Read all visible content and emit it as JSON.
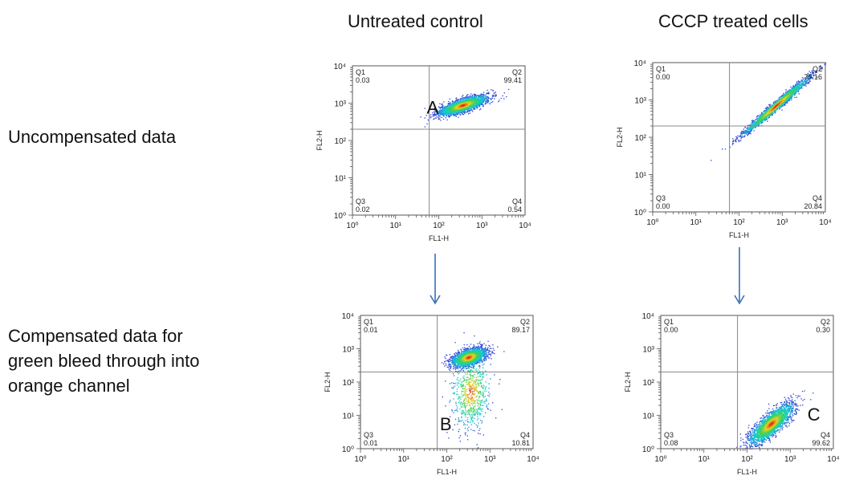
{
  "columns": [
    "Untreated control",
    "CCCP treated cells"
  ],
  "rows": [
    {
      "label_lines": [
        "Uncompensated data"
      ]
    },
    {
      "label_lines": [
        "Compensated data for",
        "green bleed through into",
        "orange channel"
      ]
    }
  ],
  "colors": {
    "density_low": "#2a3fd4",
    "density_mid": "#11c8d8",
    "density_high": "#f0d020",
    "density_peak": "#d81818",
    "gate": "#8a8a8a",
    "arrow": "#3a6fb8"
  },
  "chart_data": [
    {
      "type": "scatter",
      "id": "A",
      "panel_label": "A",
      "xlabel": "FL1-H",
      "ylabel": "FL2-H",
      "log_x": true,
      "log_y": true,
      "xlim": [
        1,
        10000
      ],
      "ylim": [
        1,
        10000
      ],
      "x_ticks": [
        "10⁰",
        "10¹",
        "10²",
        "10³",
        "10⁴"
      ],
      "y_ticks": [
        "10⁰",
        "10¹",
        "10²",
        "10³",
        "10⁴"
      ],
      "gate": {
        "x": 60,
        "y": 200
      },
      "quadrants": {
        "Q1": "0.03",
        "Q2": "99.41",
        "Q3": "0.02",
        "Q4": "0.54"
      },
      "clusters": [
        {
          "cx_log": 2.55,
          "cy_log": 2.95,
          "sx": 0.28,
          "sy": 0.13,
          "rho": 0.75,
          "n": 2600
        }
      ]
    },
    {
      "type": "scatter",
      "id": "CCCP-uncomp",
      "panel_label": "",
      "xlabel": "FL1-H",
      "ylabel": "FL2-H",
      "log_x": true,
      "log_y": true,
      "xlim": [
        1,
        10000
      ],
      "ylim": [
        1,
        10000
      ],
      "x_ticks": [
        "10⁰",
        "10¹",
        "10²",
        "10³",
        "10⁴"
      ],
      "y_ticks": [
        "10⁰",
        "10¹",
        "10²",
        "10³",
        "10⁴"
      ],
      "gate": {
        "x": 60,
        "y": 200
      },
      "quadrants": {
        "Q1": "0.00",
        "Q2": "79.16",
        "Q3": "0.00",
        "Q4": "20.84"
      },
      "clusters": [
        {
          "cx_log": 2.85,
          "cy_log": 2.85,
          "sx": 0.38,
          "sy": 0.38,
          "rho": 0.985,
          "n": 2400
        }
      ]
    },
    {
      "type": "scatter",
      "id": "B",
      "panel_label": "B",
      "xlabel": "FL1-H",
      "ylabel": "FL2-H",
      "log_x": true,
      "log_y": true,
      "xlim": [
        1,
        10000
      ],
      "ylim": [
        1,
        10000
      ],
      "x_ticks": [
        "10⁰",
        "10¹",
        "10²",
        "10³",
        "10⁴"
      ],
      "y_ticks": [
        "10⁰",
        "10¹",
        "10²",
        "10³",
        "10⁴"
      ],
      "gate": {
        "x": 60,
        "y": 200
      },
      "quadrants": {
        "Q1": "0.01",
        "Q2": "89.17",
        "Q3": "0.01",
        "Q4": "10.81"
      },
      "clusters": [
        {
          "cx_log": 2.5,
          "cy_log": 2.75,
          "sx": 0.2,
          "sy": 0.14,
          "rho": 0.5,
          "n": 2200
        },
        {
          "cx_log": 2.55,
          "cy_log": 1.7,
          "sx": 0.22,
          "sy": 0.55,
          "rho": 0.1,
          "n": 700
        }
      ]
    },
    {
      "type": "scatter",
      "id": "C",
      "panel_label": "C",
      "xlabel": "FL1-H",
      "ylabel": "FL2-H",
      "log_x": true,
      "log_y": true,
      "xlim": [
        1,
        10000
      ],
      "ylim": [
        1,
        10000
      ],
      "x_ticks": [
        "10⁰",
        "10¹",
        "10²",
        "10³",
        "10⁴"
      ],
      "y_ticks": [
        "10⁰",
        "10¹",
        "10²",
        "10³",
        "10⁴"
      ],
      "gate": {
        "x": 60,
        "y": 200
      },
      "quadrants": {
        "Q1": "0.00",
        "Q2": "0.30",
        "Q3": "0.08",
        "Q4": "99.62"
      },
      "clusters": [
        {
          "cx_log": 2.55,
          "cy_log": 0.75,
          "sx": 0.25,
          "sy": 0.3,
          "rho": 0.8,
          "n": 2400
        }
      ]
    }
  ]
}
